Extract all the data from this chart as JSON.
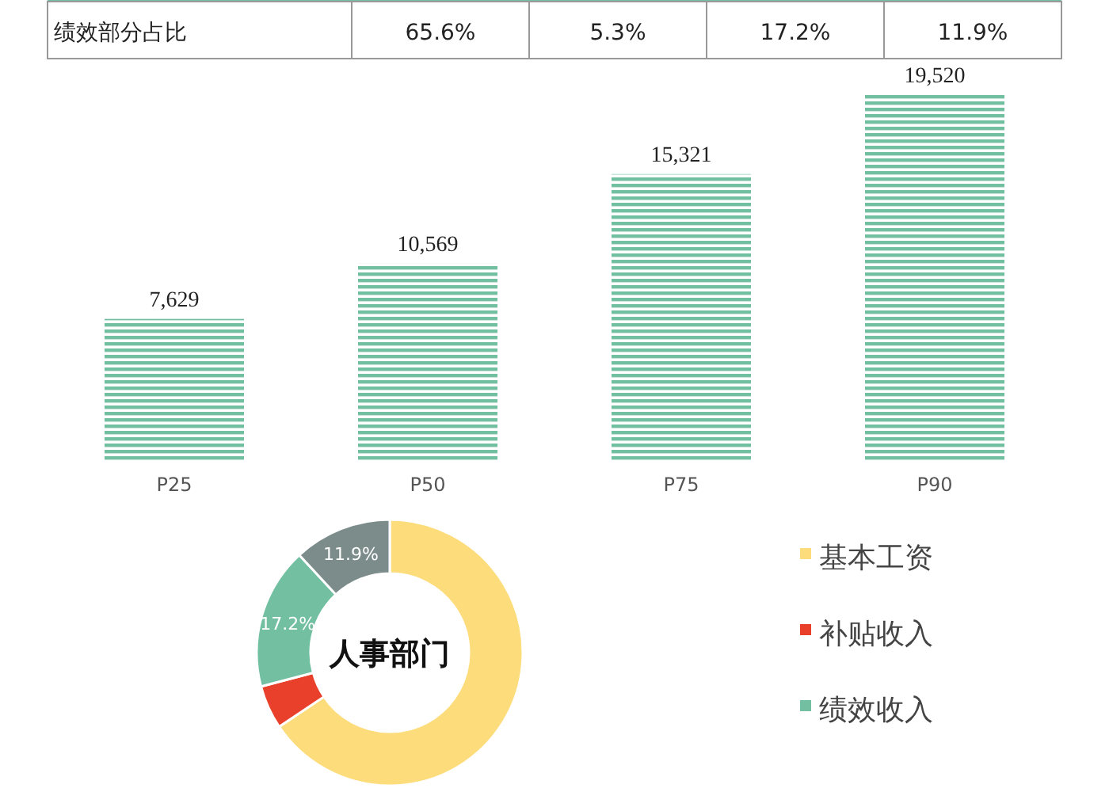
{
  "chart_data": [
    {
      "type": "other",
      "title": "绩效部分占比",
      "annotations": [
        "65.6%",
        "5.3%",
        "17.2%",
        "11.9%"
      ]
    },
    {
      "type": "bar",
      "categories": [
        "P25",
        "P50",
        "P75",
        "P90"
      ],
      "values": [
        7629,
        10569,
        15321,
        19520
      ],
      "value_labels": [
        "7,629",
        "10,569",
        "15,321",
        "19,520"
      ],
      "color": "#72bfa2"
    },
    {
      "type": "donut",
      "title": "人事部门",
      "categories": [
        "基本工资",
        "补贴收入",
        "绩效收入",
        null
      ],
      "values": [
        65.6,
        5.3,
        17.2,
        11.9
      ],
      "colors": [
        "#fddc7c",
        "#e8402a",
        "#72bfa2",
        "#7b8c8a"
      ],
      "value_labels": [
        null,
        null,
        "17.2%",
        "11.9%"
      ],
      "legend": "right"
    }
  ]
}
